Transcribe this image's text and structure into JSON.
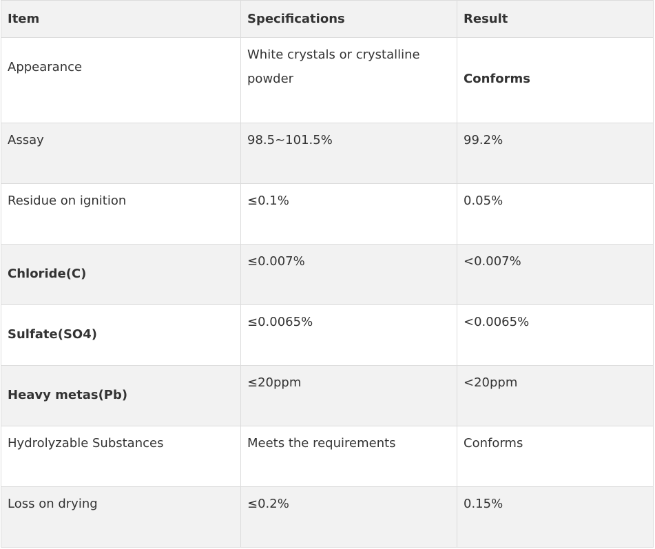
{
  "table": {
    "headers": [
      "Item",
      "Specifications",
      "Result"
    ],
    "rows": [
      {
        "item": "Appearance",
        "spec": "White crystals or crystalline powder",
        "result": "Conforms"
      },
      {
        "item": "Assay",
        "spec": "98.5~101.5%",
        "result": "99.2%"
      },
      {
        "item": "Residue on ignition",
        "spec": "≤0.1%",
        "result": "0.05%"
      },
      {
        "item": "Chloride(C)",
        "spec": "≤0.007%",
        "result": "<0.007%"
      },
      {
        "item": "Sulfate(SO4)",
        "spec": "≤0.0065%",
        "result": "<0.0065%"
      },
      {
        "item": "Heavy metas(Pb)",
        "spec": "≤20ppm",
        "result": "<20ppm"
      },
      {
        "item": "Hydrolyzable Substances",
        "spec": "Meets the requirements",
        "result": "Conforms"
      },
      {
        "item": "Loss on drying",
        "spec": "≤0.2%",
        "result": "0.15%"
      }
    ]
  }
}
